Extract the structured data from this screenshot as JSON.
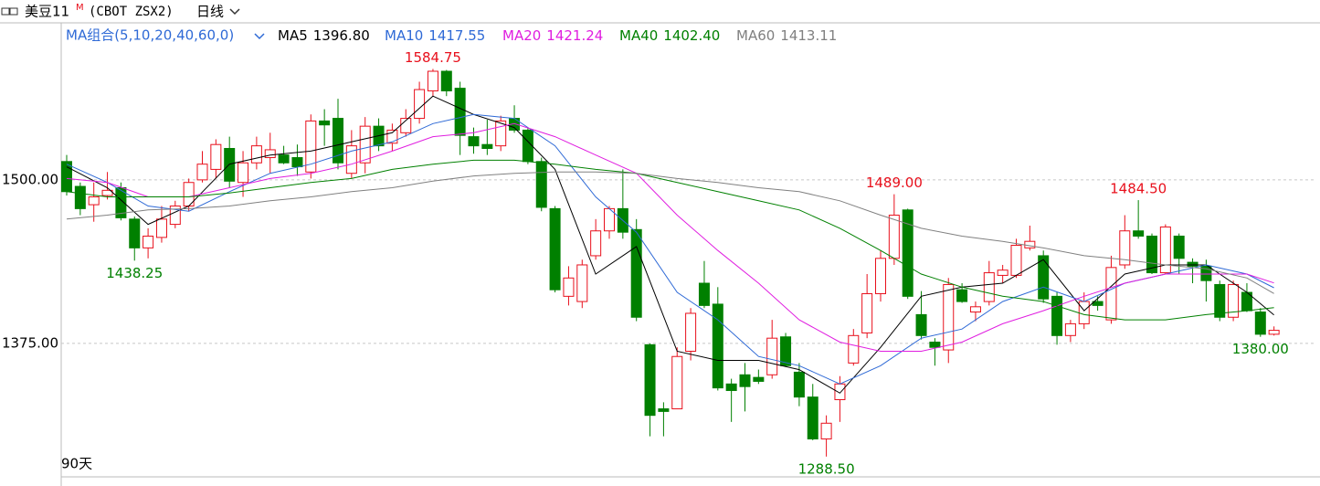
{
  "chart_data": {
    "type": "candlestick",
    "symbol": "美豆11",
    "symbol_mark": "M",
    "code": "(CBOT ZSX2)",
    "period": "日线",
    "days_label": "90天",
    "indicator_label": "MA组合(5,10,20,40,60,0)",
    "up_color": "#e8101c",
    "down_color": "#008000",
    "ylim": [
      1273,
      1620
    ],
    "yticks": [
      {
        "value": 1375,
        "label": "1375.00"
      },
      {
        "value": 1500,
        "label": "1500.00"
      }
    ],
    "grid": true,
    "open": [
      1514,
      1495,
      1481,
      1488,
      1494,
      1470,
      1448,
      1456,
      1466,
      1480,
      1500,
      1508,
      1524,
      1498,
      1513,
      1517,
      1519,
      1517,
      1506,
      1545,
      1547,
      1505,
      1513,
      1541,
      1528,
      1536,
      1547,
      1568,
      1583,
      1570,
      1533,
      1527,
      1526,
      1547,
      1538,
      1514,
      1478,
      1411,
      1407,
      1442,
      1461,
      1478,
      1462,
      1374,
      1325,
      1325,
      1369,
      1421,
      1405,
      1344,
      1351,
      1349,
      1351,
      1380,
      1353,
      1334,
      1302,
      1332,
      1360,
      1383,
      1413,
      1440,
      1477,
      1397,
      1376,
      1370,
      1416,
      1399,
      1407,
      1427,
      1427,
      1448,
      1442,
      1411,
      1381,
      1390,
      1407,
      1393,
      1435,
      1461,
      1457,
      1429,
      1457,
      1437,
      1434,
      1420,
      1395,
      1414,
      1399,
      1382
    ],
    "high": [
      1519,
      1498,
      1498,
      1506,
      1498,
      1472,
      1463,
      1480,
      1484,
      1501,
      1522,
      1531,
      1533,
      1522,
      1533,
      1536,
      1526,
      1527,
      1550,
      1554,
      1562,
      1538,
      1548,
      1547,
      1543,
      1554,
      1575,
      1584.75,
      1584,
      1575,
      1540,
      1546,
      1549,
      1557,
      1540,
      1517,
      1480,
      1434,
      1439,
      1470,
      1480,
      1508,
      1470,
      1375,
      1330,
      1372,
      1402,
      1438,
      1418,
      1348,
      1360,
      1355,
      1393,
      1383,
      1360,
      1344,
      1320,
      1350,
      1386,
      1428,
      1446,
      1489,
      1478,
      1415,
      1379,
      1425,
      1421,
      1407,
      1438,
      1435,
      1455,
      1465,
      1446,
      1414,
      1393,
      1414,
      1411,
      1442,
      1473,
      1484.5,
      1459,
      1466,
      1459,
      1440,
      1439,
      1423,
      1423,
      1421,
      1402,
      1388
    ],
    "low": [
      1488,
      1473,
      1468,
      1485,
      1469,
      1438.25,
      1440,
      1452,
      1463,
      1476,
      1498,
      1501,
      1494,
      1487,
      1508,
      1505,
      1512,
      1503,
      1501,
      1526,
      1508,
      1501,
      1505,
      1522,
      1522,
      1533,
      1543,
      1564,
      1564,
      1519,
      1520,
      1519,
      1522,
      1536,
      1512,
      1476,
      1414,
      1404,
      1402,
      1439,
      1455,
      1455,
      1392,
      1304,
      1304,
      1325,
      1362,
      1402,
      1339,
      1315,
      1323,
      1344,
      1348,
      1357,
      1327,
      1301,
      1288.5,
      1315,
      1358,
      1379,
      1407,
      1435,
      1409,
      1378,
      1358,
      1360,
      1406,
      1392,
      1404,
      1421,
      1425,
      1446,
      1406,
      1374,
      1376,
      1386,
      1400,
      1390,
      1432,
      1455,
      1428,
      1428,
      1428,
      1421,
      1407,
      1392,
      1392,
      1399,
      1380,
      1381
    ],
    "close": [
      1491,
      1478,
      1487,
      1492,
      1471,
      1448,
      1457,
      1470,
      1480,
      1498,
      1512,
      1527,
      1499,
      1513,
      1526,
      1523,
      1513,
      1510,
      1545,
      1542,
      1513,
      1526,
      1541,
      1526,
      1538,
      1547,
      1569,
      1583,
      1568,
      1534,
      1526,
      1524,
      1545,
      1538,
      1514,
      1479,
      1416,
      1425,
      1435,
      1461,
      1478,
      1460,
      1395,
      1320,
      1323,
      1365,
      1398,
      1404,
      1341,
      1339,
      1342,
      1346,
      1379,
      1358,
      1334,
      1302,
      1314,
      1344,
      1381,
      1413,
      1440,
      1473,
      1411,
      1381,
      1372,
      1420,
      1407,
      1403,
      1429,
      1431,
      1450,
      1453,
      1409,
      1381,
      1390,
      1407,
      1404,
      1433,
      1461,
      1457,
      1429,
      1464,
      1440,
      1434,
      1423,
      1395,
      1420,
      1400,
      1382,
      1385
    ],
    "extremes": [
      {
        "x": 5,
        "label": "1438.25",
        "side": "low"
      },
      {
        "x": 27,
        "label": "1584.75",
        "side": "high"
      },
      {
        "x": 56,
        "label": "1288.50",
        "side": "low"
      },
      {
        "x": 61,
        "label": "1489.00",
        "side": "high"
      },
      {
        "x": 79,
        "label": "1484.50",
        "side": "high"
      },
      {
        "x": 88,
        "label": "1380.00",
        "side": "low"
      }
    ],
    "ma_x": [
      0,
      3,
      6,
      9,
      12,
      15,
      18,
      21,
      24,
      27,
      30,
      33,
      36,
      39,
      42,
      45,
      48,
      51,
      54,
      57,
      60,
      63,
      66,
      69,
      72,
      75,
      78,
      81,
      84,
      87,
      89
    ],
    "series": [
      {
        "name": "MA5",
        "color": "#000000",
        "last_label": "1396.80",
        "values": [
          1510,
          1494,
          1466,
          1480,
          1512,
          1519,
          1522,
          1529,
          1536,
          1564,
          1550,
          1540,
          1508,
          1428,
          1449,
          1369,
          1362,
          1362,
          1355,
          1337,
          1372,
          1411,
          1418,
          1421,
          1439,
          1400,
          1428,
          1435,
          1435,
          1414,
          1396.8
        ]
      },
      {
        "name": "MA10",
        "color": "#2f6ad6",
        "last_label": "1417.55",
        "values": [
          1512,
          1498,
          1480,
          1476,
          1491,
          1505,
          1512,
          1522,
          1529,
          1543,
          1550,
          1547,
          1526,
          1487,
          1460,
          1414,
          1393,
          1365,
          1358,
          1344,
          1358,
          1379,
          1386,
          1407,
          1418,
          1407,
          1421,
          1428,
          1435,
          1428,
          1417.55
        ]
      },
      {
        "name": "MA20",
        "color": "#e01ee0",
        "last_label": "1421.24",
        "values": [
          1501,
          1498,
          1487,
          1487,
          1494,
          1501,
          1505,
          1512,
          1522,
          1533,
          1536,
          1543,
          1533,
          1519,
          1505,
          1473,
          1446,
          1421,
          1393,
          1376,
          1369,
          1369,
          1376,
          1390,
          1400,
          1411,
          1421,
          1428,
          1428,
          1428,
          1421.24
        ]
      },
      {
        "name": "MA40",
        "color": "#008000",
        "last_label": "1402.40",
        "values": [
          1491,
          1487,
          1487,
          1487,
          1490,
          1494,
          1498,
          1501,
          1508,
          1512,
          1515,
          1515,
          1512,
          1508,
          1505,
          1498,
          1491,
          1484,
          1477,
          1463,
          1446,
          1428,
          1418,
          1411,
          1407,
          1397,
          1393,
          1393,
          1397,
          1400,
          1402.4
        ]
      },
      {
        "name": "MA60",
        "color": "#808080",
        "last_label": "1413.11",
        "values": [
          1470,
          1473,
          1477,
          1478,
          1480,
          1484,
          1487,
          1491,
          1494,
          1499,
          1503,
          1505,
          1506,
          1506,
          1505,
          1501,
          1498,
          1494,
          1491,
          1484,
          1473,
          1463,
          1457,
          1453,
          1448,
          1442,
          1439,
          1435,
          1432,
          1425,
          1413.11
        ]
      }
    ]
  }
}
